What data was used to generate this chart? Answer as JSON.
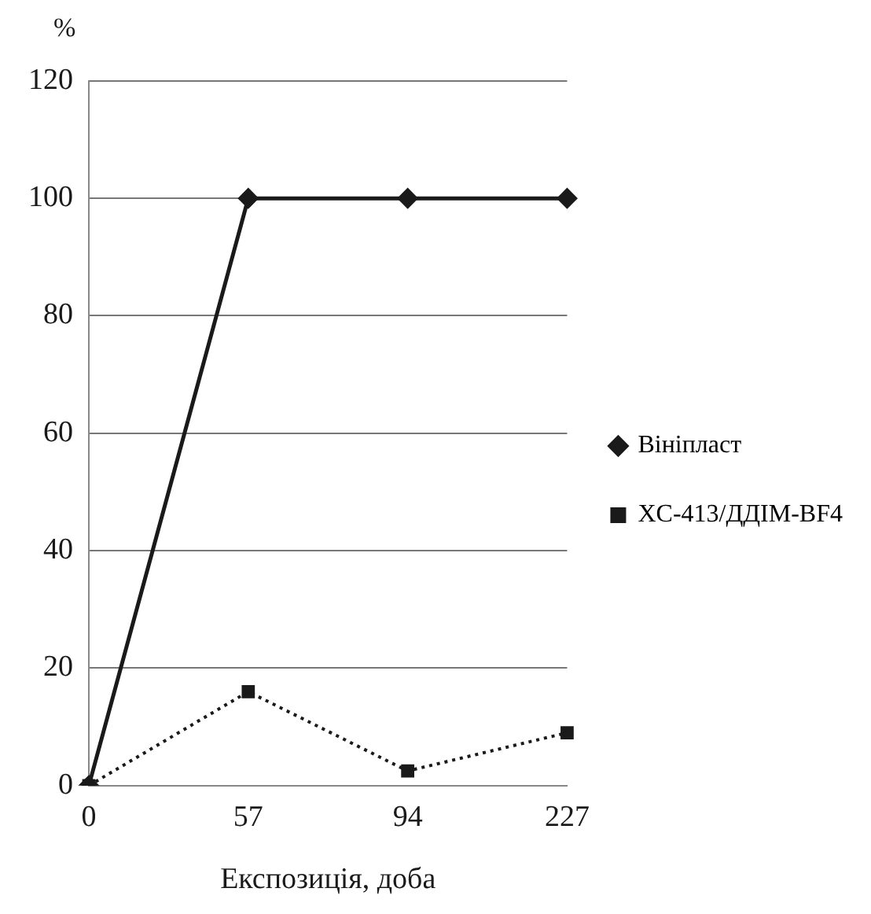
{
  "chart_data": {
    "type": "line",
    "xlabel": "Експозиція, доба",
    "ylabel": "%",
    "categories": [
      "0",
      "57",
      "94",
      "227"
    ],
    "series": [
      {
        "name": "Вініпласт",
        "color": "#1a1a1a",
        "values": [
          0,
          100,
          100,
          100
        ],
        "marker": "diamond",
        "line_style": "solid"
      },
      {
        "name": "XC-413/ДДІМ-BF4",
        "color": "#1a1a1a",
        "values": [
          0,
          16,
          2.5,
          9
        ],
        "marker": "square",
        "line_style": "dotted"
      }
    ],
    "ylim": [
      0,
      120
    ],
    "yticks": [
      0,
      20,
      40,
      60,
      80,
      100,
      120
    ],
    "grid": "y",
    "legend": "right"
  }
}
